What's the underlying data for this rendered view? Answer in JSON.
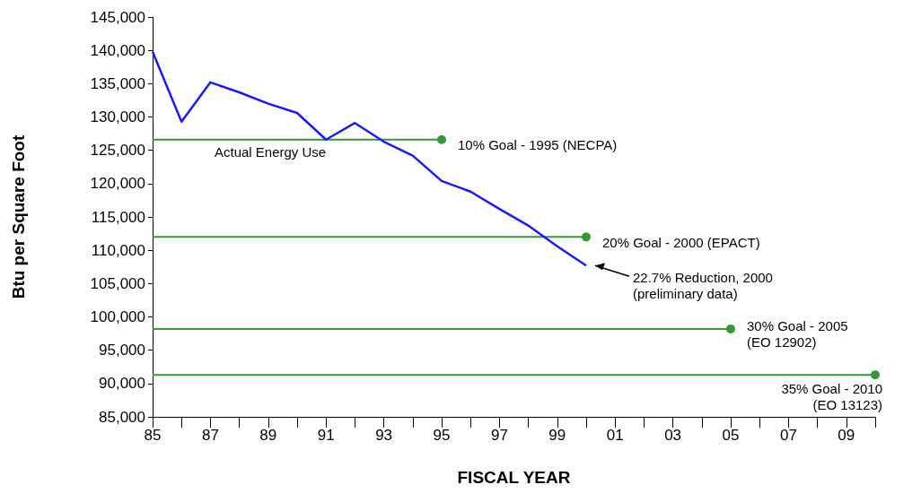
{
  "chart_data": {
    "type": "line",
    "xlabel": "FISCAL YEAR",
    "ylabel": "Btu per Square Foot",
    "series": [
      {
        "name": "Actual Energy Use",
        "color": "#1a1aff",
        "marker": "none",
        "x": [
          1985,
          1986,
          1987,
          1988,
          1989,
          1990,
          1991,
          1992,
          1993,
          1994,
          1995,
          1996,
          1997,
          1998,
          1999,
          2000
        ],
        "values": [
          139800,
          129300,
          135200,
          133700,
          132000,
          130600,
          126600,
          129100,
          126300,
          124200,
          120400,
          118800,
          116200,
          113700,
          110600,
          107700
        ]
      },
      {
        "name": "10% Goal - 1995 (NECPA)",
        "color": "#339933",
        "marker": "circle",
        "x": [
          1985,
          1995
        ],
        "values": [
          126600,
          126600
        ]
      },
      {
        "name": "20% Goal - 2000 (EPACT)",
        "color": "#339933",
        "marker": "circle",
        "x": [
          1985,
          2000
        ],
        "values": [
          112000,
          112000
        ]
      },
      {
        "name": "30% Goal - 2005\n(EO 12902)",
        "color": "#339933",
        "marker": "circle",
        "x": [
          1985,
          2005
        ],
        "values": [
          98200,
          98200
        ]
      },
      {
        "name": "35% Goal - 2010\n(EO 13123)",
        "color": "#339933",
        "marker": "circle",
        "x": [
          1985,
          2010
        ],
        "values": [
          91300,
          91300
        ]
      }
    ],
    "annotations": [
      "22.7% Reduction, 2000\n(preliminary data)"
    ],
    "xlim": [
      1985,
      2010
    ],
    "xticks": [
      {
        "value": 1985,
        "label": "85"
      },
      {
        "value": 1986,
        "label": null
      },
      {
        "value": 1987,
        "label": "87"
      },
      {
        "value": 1988,
        "label": null
      },
      {
        "value": 1989,
        "label": "89"
      },
      {
        "value": 1990,
        "label": null
      },
      {
        "value": 1991,
        "label": "91"
      },
      {
        "value": 1992,
        "label": null
      },
      {
        "value": 1993,
        "label": "93"
      },
      {
        "value": 1994,
        "label": null
      },
      {
        "value": 1995,
        "label": "95"
      },
      {
        "value": 1996,
        "label": null
      },
      {
        "value": 1997,
        "label": "97"
      },
      {
        "value": 1998,
        "label": null
      },
      {
        "value": 1999,
        "label": "99"
      },
      {
        "value": 2000,
        "label": null
      },
      {
        "value": 2001,
        "label": "01"
      },
      {
        "value": 2002,
        "label": null
      },
      {
        "value": 2003,
        "label": "03"
      },
      {
        "value": 2004,
        "label": null
      },
      {
        "value": 2005,
        "label": "05"
      },
      {
        "value": 2006,
        "label": null
      },
      {
        "value": 2007,
        "label": "07"
      },
      {
        "value": 2008,
        "label": null
      },
      {
        "value": 2009,
        "label": "09"
      },
      {
        "value": 2010,
        "label": null
      }
    ],
    "ylim": [
      85000,
      145000
    ],
    "yticks": [
      {
        "value": 85000,
        "label": "85,000"
      },
      {
        "value": 90000,
        "label": "90,000"
      },
      {
        "value": 95000,
        "label": "95,000"
      },
      {
        "value": 100000,
        "label": "100,000"
      },
      {
        "value": 105000,
        "label": "105,000"
      },
      {
        "value": 110000,
        "label": "110,000"
      },
      {
        "value": 115000,
        "label": "115,000"
      },
      {
        "value": 120000,
        "label": "120,000"
      },
      {
        "value": 125000,
        "label": "125,000"
      },
      {
        "value": 130000,
        "label": "130,000"
      },
      {
        "value": 135000,
        "label": "135,000"
      },
      {
        "value": 140000,
        "label": "140,000"
      },
      {
        "value": 145000,
        "label": "145,000"
      }
    ],
    "grid": false,
    "legend": false
  }
}
